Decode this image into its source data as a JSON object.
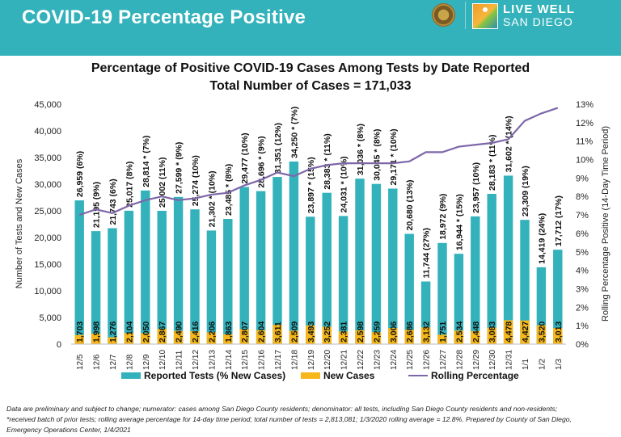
{
  "header": {
    "title": "COVID-19 Percentage Positive",
    "logo_text_line1": "LIVE WELL",
    "logo_text_line2": "SAN DIEGO",
    "brand_color": "#33b2bb"
  },
  "footnote": {
    "line1": "Data are preliminary and subject to change; numerator: cases among San Diego County residents; denominator: all tests, including San Diego County residents and non-residents;",
    "line2": "*received batch of prior tests; rolling average percentage for 14-day time period; total number of tests = 2,813,081; 1/3/2020 rolling average = 12.8%. Prepared by County of San Diego,",
    "line3": "Emergency Operations Center, 1/4/2021"
  },
  "chart_data": {
    "type": "bar",
    "title": "Percentage of Positive COVID-19 Cases Among Tests by Date Reported",
    "subtitle": "Total Number of Cases = 171,033",
    "xlabel": "",
    "ylabel": "Number of Tests and New Cases",
    "y2label": "Rolling Percentage Positive (14-Day Time Period)",
    "ylim": [
      0,
      45000
    ],
    "y_ticks": [
      "0",
      "5,000",
      "10,000",
      "15,000",
      "20,000",
      "25,000",
      "30,000",
      "35,000",
      "40,000",
      "45,000"
    ],
    "y2lim": [
      0,
      13
    ],
    "y2_ticks": [
      "0%",
      "1%",
      "2%",
      "3%",
      "4%",
      "5%",
      "6%",
      "7%",
      "8%",
      "9%",
      "10%",
      "11%",
      "12%",
      "13%"
    ],
    "grid": false,
    "legend_position": "bottom",
    "categories": [
      "12/5",
      "12/6",
      "12/7",
      "12/8",
      "12/9",
      "12/10",
      "12/11",
      "12/12",
      "12/13",
      "12/14",
      "12/15",
      "12/16",
      "12/17",
      "12/18",
      "12/19",
      "12/20",
      "12/21",
      "12/22",
      "12/23",
      "12/24",
      "12/25",
      "12/26",
      "12/27",
      "12/28",
      "12/29",
      "12/30",
      "12/31",
      "1/1",
      "1/2",
      "1/3"
    ],
    "series": [
      {
        "name": "Reported Tests (% New Cases)",
        "color": "#33b2bb",
        "values": [
          26959,
          21195,
          21743,
          25017,
          28814,
          25002,
          27599,
          25274,
          21302,
          23485,
          29477,
          28696,
          31351,
          34250,
          23897,
          28383,
          24031,
          31036,
          30045,
          29171,
          20680,
          11744,
          18972,
          16944,
          23957,
          28183,
          31602,
          23309,
          14419,
          17712
        ],
        "labels": [
          "26,959 (6%)",
          "21,195 (9%)",
          "21,743 (6%)",
          "25,017 (8%)",
          "28,814 * (7%)",
          "25,002 (11%)",
          "27,599 * (9%)",
          "25,274 (10%)",
          "21,302 * (10%)",
          "23,485 * (8%)",
          "29,477 (10%)",
          "28,696 * (9%)",
          "31,351 (12%)",
          "34,250 * (7%)",
          "23,897 * (15%)",
          "28,383 * (11%)",
          "24,031 * (10%)",
          "31,036 * (8%)",
          "30,045 * (8%)",
          "29,171 * (10%)",
          "20,680 (13%)",
          "11,744 (27%)",
          "18,972 (9%)",
          "16,944 * (15%)",
          "23,957 (10%)",
          "28,183 * (11%)",
          "31,602 * (14%)",
          "23,309 (19%)",
          "14,419 (24%)",
          "17,712 (17%)"
        ]
      },
      {
        "name": "New Cases",
        "color": "#f6b71b",
        "values": [
          1703,
          1998,
          1276,
          2104,
          2050,
          2867,
          2490,
          2416,
          2206,
          1863,
          2807,
          2604,
          3611,
          2509,
          3493,
          3252,
          2381,
          2598,
          2259,
          3006,
          2686,
          3132,
          1751,
          2534,
          2448,
          3083,
          4478,
          4427,
          3520,
          3013
        ],
        "labels": [
          "1,703",
          "1,998",
          "1,276",
          "2,104",
          "2,050",
          "2,867",
          "2,490",
          "2,416",
          "2,206",
          "1,863",
          "2,807",
          "2,604",
          "3,611",
          "2,509",
          "3,493",
          "3,252",
          "2,381",
          "2,598",
          "2,259",
          "3,006",
          "2,686",
          "3,132",
          "1,751",
          "2,534",
          "2,448",
          "3,083",
          "4,478",
          "4,427",
          "3,520",
          "3,013"
        ]
      },
      {
        "name": "Rolling Percentage",
        "color": "#7d67a8",
        "axis": "right",
        "type": "line",
        "values": [
          7.0,
          7.3,
          7.1,
          7.5,
          7.8,
          8.0,
          7.8,
          7.9,
          8.1,
          8.2,
          8.6,
          8.9,
          9.3,
          9.1,
          9.5,
          9.7,
          9.8,
          9.8,
          9.8,
          9.8,
          9.9,
          10.4,
          10.4,
          10.7,
          10.8,
          10.9,
          11.1,
          12.1,
          12.5,
          12.8
        ]
      }
    ]
  }
}
